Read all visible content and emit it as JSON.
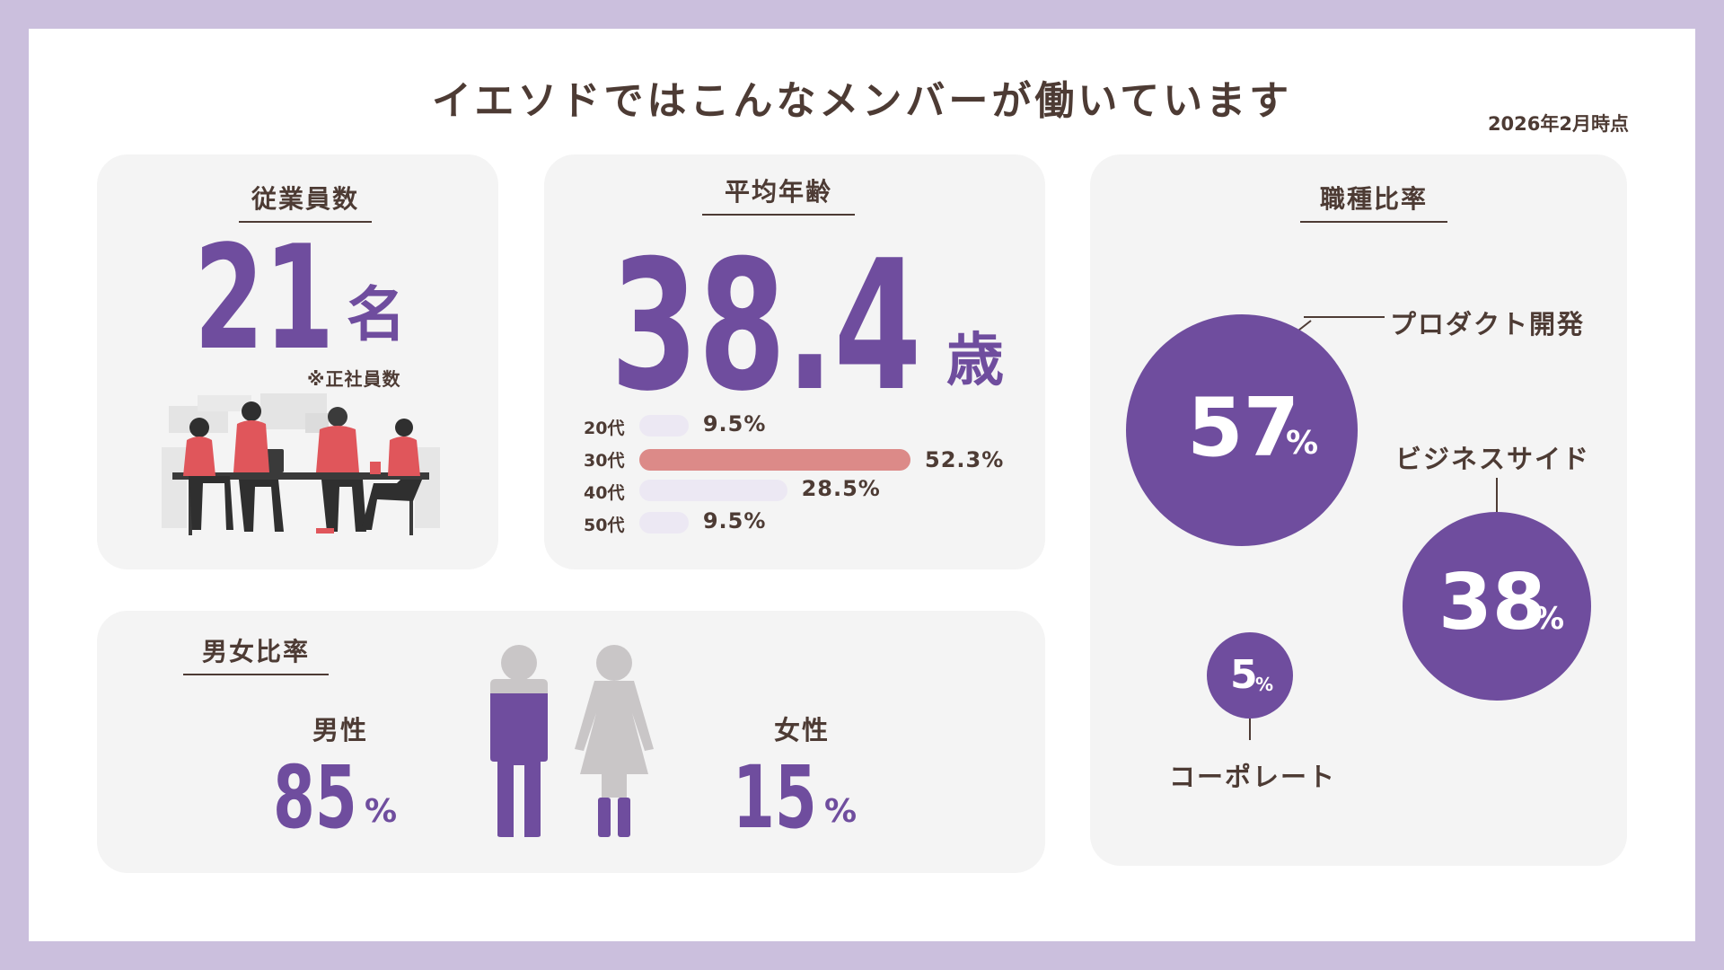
{
  "title": "イエソドではこんなメンバーが働いています",
  "as_of": "2026年2月時点",
  "employees": {
    "heading": "従業員数",
    "value": "21",
    "unit": "名",
    "note": "※正社員数",
    "illustration_icon": "team-meeting-illustration"
  },
  "average_age": {
    "heading": "平均年齢",
    "value": "38.4",
    "unit": "歳",
    "brackets": [
      {
        "label": "20代",
        "percent": 9.5,
        "text": "9.5%"
      },
      {
        "label": "30代",
        "percent": 52.3,
        "text": "52.3%"
      },
      {
        "label": "40代",
        "percent": 28.5,
        "text": "28.5%"
      },
      {
        "label": "50代",
        "percent": 9.5,
        "text": "9.5%"
      }
    ]
  },
  "gender": {
    "heading": "男女比率",
    "male_label": "男性",
    "male_value": "85",
    "male_unit": "%",
    "female_label": "女性",
    "female_value": "15",
    "female_unit": "%",
    "male_icon": "male-figure-icon",
    "female_icon": "female-figure-icon"
  },
  "job_ratio": {
    "heading": "職種比率",
    "items": [
      {
        "label": "プロダクト開発",
        "value": "57",
        "unit": "%"
      },
      {
        "label": "ビジネスサイド",
        "value": "38",
        "unit": "%"
      },
      {
        "label": "コーポレート",
        "value": "5",
        "unit": "%"
      }
    ]
  },
  "colors": {
    "accent": "#6f4d9e",
    "frame": "#cbbfdd",
    "card": "#f4f4f4",
    "text": "#4d3b34",
    "bar_highlight": "#dc8a88",
    "bar_default": "#ece8f3",
    "figure_gray": "#c9c6c7"
  }
}
